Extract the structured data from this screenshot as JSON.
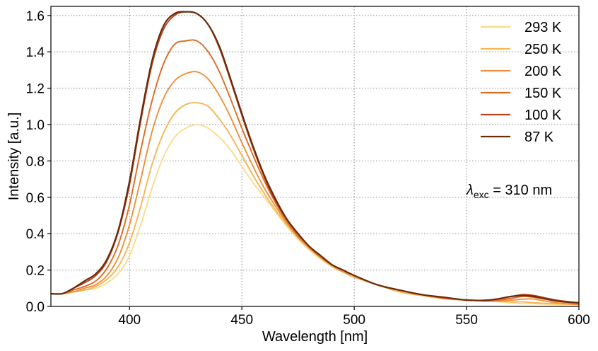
{
  "chart_data": {
    "type": "line",
    "xlabel": "Wavelength [nm]",
    "ylabel": "Intensity [a.u.]",
    "xlim": [
      365,
      600
    ],
    "ylim": [
      0.0,
      1.65
    ],
    "xticks": [
      400,
      450,
      500,
      550,
      600
    ],
    "xtick_labels": [
      "400",
      "450",
      "500",
      "550",
      "600"
    ],
    "yticks": [
      0.0,
      0.2,
      0.4,
      0.6,
      0.8,
      1.0,
      1.2,
      1.4,
      1.6
    ],
    "ytick_labels": [
      "0.0",
      "0.2",
      "0.4",
      "0.6",
      "0.8",
      "1.0",
      "1.2",
      "1.4",
      "1.6"
    ],
    "grid": true,
    "legend_position": "top-right",
    "annotation": {
      "symbol": "λ",
      "subscript": "exc",
      "text": " = 310 nm"
    },
    "x": [
      365,
      370,
      375,
      380,
      385,
      390,
      395,
      400,
      405,
      410,
      415,
      420,
      425,
      430,
      435,
      440,
      445,
      450,
      455,
      460,
      465,
      470,
      475,
      480,
      485,
      490,
      495,
      500,
      510,
      520,
      530,
      540,
      550,
      560,
      570,
      575,
      580,
      590,
      600
    ],
    "series": [
      {
        "name": "293 K",
        "color": "#f8dc8e",
        "values": [
          0.07,
          0.07,
          0.08,
          0.09,
          0.1,
          0.13,
          0.18,
          0.28,
          0.45,
          0.65,
          0.82,
          0.93,
          0.98,
          1.0,
          0.98,
          0.93,
          0.86,
          0.77,
          0.68,
          0.6,
          0.52,
          0.44,
          0.37,
          0.31,
          0.26,
          0.22,
          0.19,
          0.16,
          0.12,
          0.08,
          0.06,
          0.04,
          0.035,
          0.03,
          0.02,
          0.015,
          0.015,
          0.01,
          0.01
        ]
      },
      {
        "name": "250 K",
        "color": "#f5b654",
        "values": [
          0.07,
          0.07,
          0.08,
          0.09,
          0.11,
          0.15,
          0.22,
          0.35,
          0.55,
          0.78,
          0.95,
          1.06,
          1.11,
          1.12,
          1.1,
          1.03,
          0.94,
          0.83,
          0.72,
          0.62,
          0.53,
          0.45,
          0.38,
          0.32,
          0.27,
          0.22,
          0.19,
          0.16,
          0.12,
          0.08,
          0.06,
          0.045,
          0.035,
          0.03,
          0.025,
          0.025,
          0.02,
          0.015,
          0.01
        ]
      },
      {
        "name": "200 K",
        "color": "#ee903a",
        "values": [
          0.07,
          0.07,
          0.08,
          0.1,
          0.12,
          0.17,
          0.27,
          0.45,
          0.7,
          0.96,
          1.14,
          1.24,
          1.28,
          1.29,
          1.25,
          1.16,
          1.04,
          0.9,
          0.77,
          0.65,
          0.55,
          0.46,
          0.38,
          0.32,
          0.27,
          0.23,
          0.19,
          0.17,
          0.12,
          0.09,
          0.065,
          0.045,
          0.035,
          0.03,
          0.035,
          0.04,
          0.04,
          0.02,
          0.01
        ]
      },
      {
        "name": "150 K",
        "color": "#de6b22",
        "values": [
          0.07,
          0.07,
          0.09,
          0.11,
          0.14,
          0.21,
          0.34,
          0.56,
          0.86,
          1.13,
          1.33,
          1.44,
          1.46,
          1.46,
          1.4,
          1.29,
          1.14,
          0.98,
          0.83,
          0.69,
          0.57,
          0.47,
          0.39,
          0.33,
          0.27,
          0.23,
          0.2,
          0.17,
          0.12,
          0.09,
          0.065,
          0.045,
          0.035,
          0.03,
          0.045,
          0.055,
          0.05,
          0.03,
          0.015
        ]
      },
      {
        "name": "100 K",
        "color": "#b7461a",
        "values": [
          0.07,
          0.07,
          0.1,
          0.13,
          0.17,
          0.25,
          0.41,
          0.67,
          1.02,
          1.33,
          1.52,
          1.6,
          1.62,
          1.61,
          1.55,
          1.42,
          1.24,
          1.05,
          0.87,
          0.71,
          0.58,
          0.48,
          0.4,
          0.33,
          0.28,
          0.23,
          0.2,
          0.17,
          0.12,
          0.09,
          0.065,
          0.05,
          0.035,
          0.035,
          0.055,
          0.065,
          0.06,
          0.035,
          0.02
        ]
      },
      {
        "name": "87 K",
        "color": "#6b2a0c",
        "values": [
          0.07,
          0.07,
          0.1,
          0.14,
          0.18,
          0.26,
          0.42,
          0.69,
          1.04,
          1.35,
          1.54,
          1.61,
          1.62,
          1.61,
          1.55,
          1.43,
          1.25,
          1.06,
          0.88,
          0.72,
          0.59,
          0.48,
          0.4,
          0.33,
          0.28,
          0.23,
          0.2,
          0.17,
          0.12,
          0.09,
          0.065,
          0.05,
          0.035,
          0.035,
          0.055,
          0.06,
          0.055,
          0.03,
          0.02
        ]
      }
    ]
  }
}
